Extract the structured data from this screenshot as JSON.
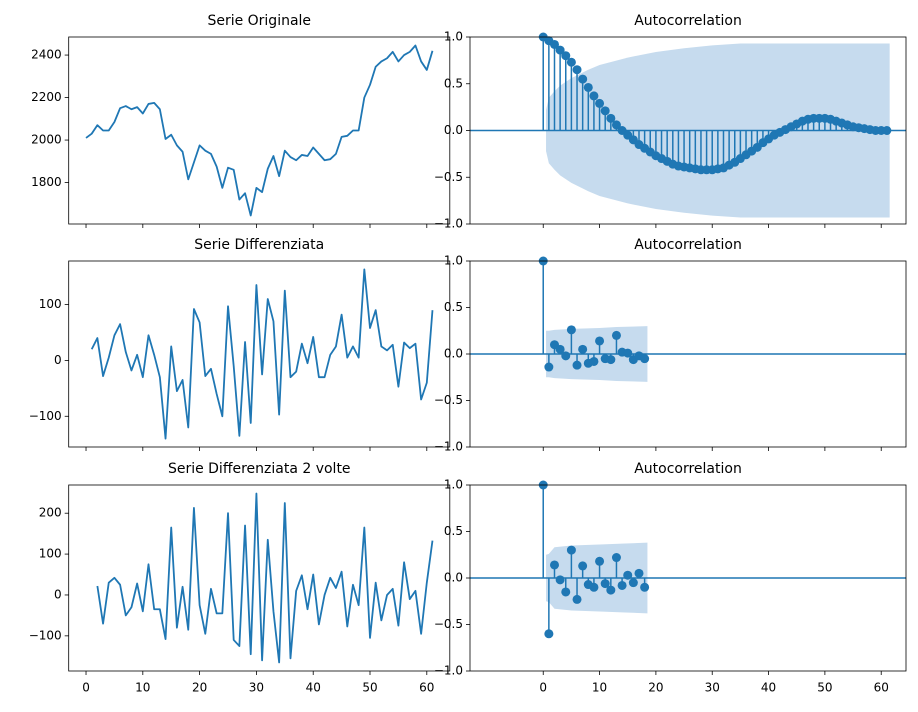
{
  "chart_data": [
    {
      "type": "line",
      "title": "Serie Originale",
      "color": "#1f77b4",
      "x": [
        0,
        1,
        2,
        3,
        4,
        5,
        6,
        7,
        8,
        9,
        10,
        11,
        12,
        13,
        14,
        15,
        16,
        17,
        18,
        19,
        20,
        21,
        22,
        23,
        24,
        25,
        26,
        27,
        28,
        29,
        30,
        31,
        32,
        33,
        34,
        35,
        36,
        37,
        38,
        39,
        40,
        41,
        42,
        43,
        44,
        45,
        46,
        47,
        48,
        49,
        50,
        51,
        52,
        53,
        54,
        55,
        56,
        57,
        58,
        59,
        60,
        61
      ],
      "values": [
        2010,
        2030,
        2070,
        2045,
        2045,
        2085,
        2150,
        2160,
        2145,
        2155,
        2125,
        2170,
        2175,
        2145,
        2005,
        2025,
        1975,
        1945,
        1815,
        1895,
        1975,
        1950,
        1935,
        1875,
        1775,
        1870,
        1860,
        1720,
        1750,
        1645,
        1775,
        1755,
        1865,
        1925,
        1830,
        1950,
        1920,
        1905,
        1930,
        1925,
        1965,
        1935,
        1905,
        1910,
        1935,
        2015,
        2020,
        2045,
        2045,
        2200,
        2260,
        2345,
        2370,
        2385,
        2415,
        2370,
        2400,
        2415,
        2445,
        2370,
        2330,
        2420
      ],
      "xlim": [
        -3.05,
        64.05
      ],
      "ylim": [
        1605,
        2485
      ],
      "xticks": [
        0,
        10,
        20,
        30,
        40,
        50,
        60
      ],
      "yticks": [
        1800,
        2000,
        2200,
        2400
      ]
    },
    {
      "type": "acf",
      "title": "Autocorrelation",
      "color": "#1f77b4",
      "band_color": "#c6dbee",
      "x": [
        0,
        1,
        2,
        3,
        4,
        5,
        6,
        7,
        8,
        9,
        10,
        11,
        12,
        13,
        14,
        15,
        16,
        17,
        18,
        19,
        20,
        21,
        22,
        23,
        24,
        25,
        26,
        27,
        28,
        29,
        30,
        31,
        32,
        33,
        34,
        35,
        36,
        37,
        38,
        39,
        40,
        41,
        42,
        43,
        44,
        45,
        46,
        47,
        48,
        49,
        50,
        51,
        52,
        53,
        54,
        55,
        56,
        57,
        58,
        59,
        60,
        61
      ],
      "values": [
        1.0,
        0.96,
        0.92,
        0.86,
        0.8,
        0.73,
        0.65,
        0.55,
        0.46,
        0.37,
        0.29,
        0.21,
        0.13,
        0.06,
        0.0,
        -0.05,
        -0.1,
        -0.15,
        -0.19,
        -0.23,
        -0.27,
        -0.3,
        -0.33,
        -0.36,
        -0.38,
        -0.39,
        -0.4,
        -0.41,
        -0.42,
        -0.42,
        -0.42,
        -0.41,
        -0.4,
        -0.37,
        -0.34,
        -0.3,
        -0.26,
        -0.22,
        -0.18,
        -0.13,
        -0.09,
        -0.05,
        -0.02,
        0.01,
        0.04,
        0.07,
        0.1,
        0.12,
        0.13,
        0.13,
        0.13,
        0.12,
        0.1,
        0.08,
        0.06,
        0.04,
        0.03,
        0.02,
        0.01,
        0.0,
        0.0,
        0.0
      ],
      "confidence_band": {
        "x": [
          0.5,
          1,
          2,
          3,
          5,
          8,
          10,
          15,
          20,
          25,
          30,
          35,
          40,
          61.5
        ],
        "halfwidth": [
          0.22,
          0.35,
          0.42,
          0.48,
          0.56,
          0.65,
          0.7,
          0.78,
          0.84,
          0.88,
          0.91,
          0.93,
          0.93,
          0.93
        ]
      },
      "xlim": [
        -13,
        64.4
      ],
      "ylim": [
        -1,
        1
      ],
      "xticks": [
        0,
        10,
        20,
        30,
        40,
        50,
        60
      ],
      "yticks": [
        {
          "value": -1,
          "label": "−1.0"
        },
        {
          "value": -0.5,
          "label": "−0.5"
        },
        {
          "value": 0,
          "label": "0.0"
        },
        {
          "value": 0.5,
          "label": "0.5"
        },
        {
          "value": 1,
          "label": "1.0"
        }
      ]
    },
    {
      "type": "line",
      "title": "Serie Differenziata",
      "color": "#1f77b4",
      "x": [
        1,
        2,
        3,
        4,
        5,
        6,
        7,
        8,
        9,
        10,
        11,
        12,
        13,
        14,
        15,
        16,
        17,
        18,
        19,
        20,
        21,
        22,
        23,
        24,
        25,
        26,
        27,
        28,
        29,
        30,
        31,
        32,
        33,
        34,
        35,
        36,
        37,
        38,
        39,
        40,
        41,
        42,
        43,
        44,
        45,
        46,
        47,
        48,
        49,
        50,
        51,
        52,
        53,
        54,
        55,
        56,
        57,
        58,
        59,
        60,
        61
      ],
      "values": [
        20,
        40,
        -28,
        5,
        45,
        65,
        15,
        -18,
        10,
        -30,
        45,
        10,
        -30,
        -140,
        25,
        -55,
        -35,
        -120,
        92,
        68,
        -28,
        -15,
        -60,
        -100,
        97,
        -10,
        -135,
        33,
        -112,
        135,
        -25,
        110,
        70,
        -97,
        125,
        -30,
        -20,
        30,
        -5,
        42,
        -30,
        -30,
        10,
        25,
        82,
        5,
        25,
        5,
        163,
        58,
        90,
        25,
        18,
        28,
        -47,
        32,
        22,
        30,
        -70,
        -40,
        90
      ],
      "xlim": [
        -3.05,
        64.05
      ],
      "ylim": [
        -155,
        178
      ],
      "xticks": [
        0,
        10,
        20,
        30,
        40,
        50,
        60
      ],
      "yticks": [
        {
          "value": -100,
          "label": "−100"
        },
        0,
        100
      ]
    },
    {
      "type": "acf",
      "title": "Autocorrelation",
      "color": "#1f77b4",
      "band_color": "#c6dbee",
      "x": [
        0,
        1,
        2,
        3,
        4,
        5,
        6,
        7,
        8,
        9,
        10,
        11,
        12,
        13,
        14,
        15,
        16,
        17,
        18
      ],
      "values": [
        1.0,
        -0.14,
        0.1,
        0.05,
        -0.02,
        0.26,
        -0.12,
        0.05,
        -0.1,
        -0.08,
        0.14,
        -0.05,
        -0.06,
        0.2,
        0.02,
        0.01,
        -0.06,
        -0.02,
        -0.05
      ],
      "confidence_band": {
        "x": [
          0.5,
          1,
          2,
          5,
          10,
          13,
          18.5
        ],
        "halfwidth": [
          0.25,
          0.25,
          0.26,
          0.27,
          0.28,
          0.29,
          0.3
        ]
      },
      "xlim": [
        -13,
        64.4
      ],
      "ylim": [
        -1,
        1
      ],
      "xticks": [
        0,
        10,
        20,
        30,
        40,
        50,
        60
      ],
      "yticks": [
        {
          "value": -1,
          "label": "−1.0"
        },
        {
          "value": -0.5,
          "label": "−0.5"
        },
        {
          "value": 0,
          "label": "0.0"
        },
        {
          "value": 0.5,
          "label": "0.5"
        },
        {
          "value": 1,
          "label": "1.0"
        }
      ]
    },
    {
      "type": "line",
      "title": "Serie Differenziata 2 volte",
      "color": "#1f77b4",
      "x": [
        2,
        3,
        4,
        5,
        6,
        7,
        8,
        9,
        10,
        11,
        12,
        13,
        14,
        15,
        16,
        17,
        18,
        19,
        20,
        21,
        22,
        23,
        24,
        25,
        26,
        27,
        28,
        29,
        30,
        31,
        32,
        33,
        34,
        35,
        36,
        37,
        38,
        39,
        40,
        41,
        42,
        43,
        44,
        45,
        46,
        47,
        48,
        49,
        50,
        51,
        52,
        53,
        54,
        55,
        56,
        57,
        58,
        59,
        60,
        61
      ],
      "values": [
        22,
        -70,
        30,
        42,
        25,
        -50,
        -30,
        28,
        -40,
        75,
        -35,
        -35,
        -108,
        165,
        -80,
        20,
        -85,
        213,
        -25,
        -95,
        15,
        -45,
        -45,
        200,
        -110,
        -125,
        170,
        -145,
        248,
        -160,
        135,
        -40,
        -165,
        225,
        -155,
        10,
        48,
        -35,
        50,
        -72,
        0,
        42,
        17,
        57,
        -77,
        25,
        -25,
        165,
        -105,
        30,
        -62,
        0,
        15,
        -75,
        80,
        -10,
        10,
        -95,
        30,
        133
      ],
      "xlim": [
        -3.05,
        64.05
      ],
      "ylim": [
        -186,
        269
      ],
      "xticks": [
        0,
        10,
        20,
        30,
        40,
        50,
        60
      ],
      "yticks": [
        {
          "value": -100,
          "label": "−100"
        },
        0,
        100,
        200
      ]
    },
    {
      "type": "acf",
      "title": "Autocorrelation",
      "color": "#1f77b4",
      "band_color": "#c6dbee",
      "x": [
        0,
        1,
        2,
        3,
        4,
        5,
        6,
        7,
        8,
        9,
        10,
        11,
        12,
        13,
        14,
        15,
        16,
        17,
        18
      ],
      "values": [
        1.0,
        -0.6,
        0.14,
        -0.02,
        -0.15,
        0.3,
        -0.23,
        0.13,
        -0.07,
        -0.1,
        0.18,
        -0.06,
        -0.13,
        0.22,
        -0.08,
        0.03,
        -0.05,
        0.05,
        -0.1
      ],
      "confidence_band": {
        "x": [
          0.5,
          1,
          2,
          5,
          10,
          14,
          18.5
        ],
        "halfwidth": [
          0.25,
          0.26,
          0.33,
          0.35,
          0.36,
          0.37,
          0.38
        ]
      },
      "xlim": [
        -13,
        64.4
      ],
      "ylim": [
        -1,
        1
      ],
      "xticks": [
        0,
        10,
        20,
        30,
        40,
        50,
        60
      ],
      "yticks": [
        {
          "value": -1,
          "label": "−1.0"
        },
        {
          "value": -0.5,
          "label": "−0.5"
        },
        {
          "value": 0,
          "label": "0.0"
        },
        {
          "value": 0.5,
          "label": "0.5"
        },
        {
          "value": 1,
          "label": "1.0"
        }
      ]
    }
  ]
}
